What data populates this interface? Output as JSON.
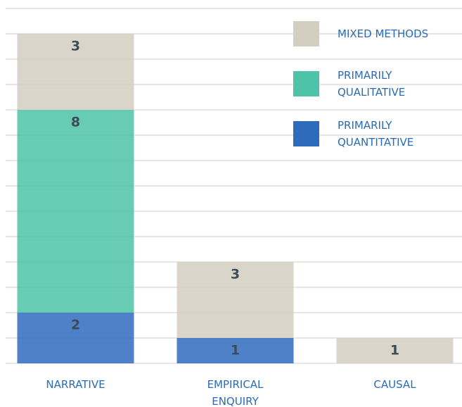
{
  "chart_data": {
    "type": "stacked_bar",
    "categories": [
      "NARRATIVE",
      "EMPIRICAL ENQUIRY",
      "CAUSAL"
    ],
    "series": [
      {
        "name": "PRIMARILY QUANTITATIVE",
        "color": "#2f6bbd",
        "values": [
          2,
          1,
          0
        ]
      },
      {
        "name": "PRIMARILY QUALITATIVE",
        "color": "#4dc3a8",
        "values": [
          8,
          0,
          0
        ]
      },
      {
        "name": "MIXED METHODS",
        "color": "#d2cfc0",
        "values": [
          3,
          3,
          1
        ]
      }
    ],
    "ylim": [
      0,
      14
    ],
    "yticks": [
      0,
      1,
      2,
      3,
      4,
      5,
      6,
      7,
      8,
      9,
      10,
      11,
      12,
      13,
      14
    ],
    "grid": true,
    "legend": "top-right"
  }
}
